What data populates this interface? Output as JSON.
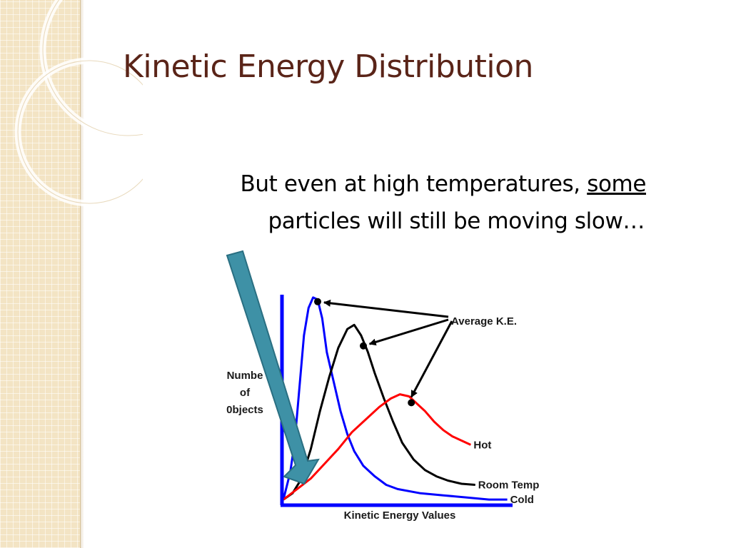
{
  "slide": {
    "title": "Kinetic Energy Distribution",
    "body_line1_prefix": "But even at high temperatures,",
    "body_line1_emphasis": "some",
    "body_line2": "particles will still be moving slow…"
  },
  "colors": {
    "title": "#5a2418",
    "strip": "#f3e4c4",
    "arrow": "#3e91a6",
    "axis": "#0000ff",
    "cold": "#0000ff",
    "room_temp": "#000000",
    "hot": "#ff0000"
  },
  "chart_data": {
    "type": "line",
    "xlabel": "Kinetic Energy Values",
    "ylabel_lines": [
      "Numbe",
      "of",
      "0bjects"
    ],
    "xlim": [
      0,
      100
    ],
    "ylim": [
      0,
      100
    ],
    "annotation": "Average K.E.",
    "series": [
      {
        "name": "Cold",
        "color": "#0000ff",
        "average_point": [
          15,
          96
        ],
        "points": [
          [
            0,
            2
          ],
          [
            3,
            15
          ],
          [
            5,
            30
          ],
          [
            7,
            55
          ],
          [
            9,
            80
          ],
          [
            11,
            93
          ],
          [
            13,
            98
          ],
          [
            15,
            97
          ],
          [
            17,
            88
          ],
          [
            19,
            72
          ],
          [
            22,
            58
          ],
          [
            25,
            44
          ],
          [
            28,
            33
          ],
          [
            31,
            25
          ],
          [
            35,
            18
          ],
          [
            40,
            13
          ],
          [
            45,
            9
          ],
          [
            50,
            7
          ],
          [
            60,
            5
          ],
          [
            70,
            4
          ],
          [
            80,
            3
          ],
          [
            90,
            2
          ],
          [
            98,
            2
          ]
        ]
      },
      {
        "name": "Room Temp",
        "color": "#000000",
        "average_point": [
          35,
          75
        ],
        "points": [
          [
            0,
            2
          ],
          [
            4,
            5
          ],
          [
            8,
            12
          ],
          [
            12,
            26
          ],
          [
            16,
            44
          ],
          [
            20,
            60
          ],
          [
            24,
            74
          ],
          [
            28,
            83
          ],
          [
            31,
            85
          ],
          [
            34,
            80
          ],
          [
            37,
            72
          ],
          [
            40,
            62
          ],
          [
            44,
            50
          ],
          [
            48,
            39
          ],
          [
            52,
            29
          ],
          [
            57,
            21
          ],
          [
            62,
            16
          ],
          [
            67,
            13
          ],
          [
            72,
            11
          ],
          [
            78,
            9.5
          ],
          [
            84,
            9
          ]
        ]
      },
      {
        "name": "Hot",
        "color": "#ff0000",
        "average_point": [
          56,
          48
        ],
        "points": [
          [
            0,
            2
          ],
          [
            6,
            7
          ],
          [
            12,
            12
          ],
          [
            18,
            19
          ],
          [
            24,
            26
          ],
          [
            30,
            34
          ],
          [
            36,
            40
          ],
          [
            42,
            46
          ],
          [
            47,
            50
          ],
          [
            51,
            52
          ],
          [
            55,
            51
          ],
          [
            58,
            48
          ],
          [
            62,
            44
          ],
          [
            66,
            39
          ],
          [
            70,
            35
          ],
          [
            74,
            32
          ],
          [
            78,
            30
          ],
          [
            82,
            28
          ]
        ]
      }
    ]
  }
}
